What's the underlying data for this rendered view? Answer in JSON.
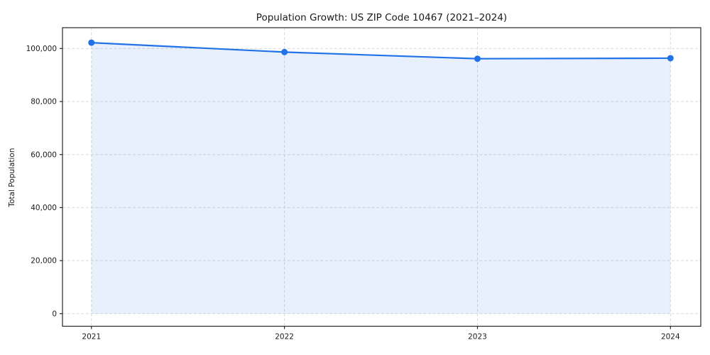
{
  "chart_data": {
    "type": "line",
    "title": "Population Growth: US ZIP Code 10467 (2021–2024)",
    "xlabel": "",
    "ylabel": "Total Population",
    "x": [
      2021,
      2022,
      2023,
      2024
    ],
    "categories": [
      "2021",
      "2022",
      "2023",
      "2024"
    ],
    "series": [
      {
        "name": "Total Population",
        "values": [
          102200,
          98650,
          96150,
          96350
        ]
      }
    ],
    "y_ticks": [
      0,
      20000,
      40000,
      60000,
      80000,
      100000
    ],
    "y_tick_labels": [
      "0",
      "20,000",
      "40,000",
      "60,000",
      "80,000",
      "100,000"
    ],
    "x_tick_labels": [
      "2021",
      "2022",
      "2023",
      "2024"
    ],
    "xlim": [
      2020.85,
      2024.157
    ],
    "ylim": [
      -4750,
      107850
    ],
    "grid": true,
    "grid_style": "dashed",
    "legend": "none",
    "fill_to_zero": true,
    "markers": true,
    "colors": {
      "line": "#2172e6",
      "marker": "#2172e6",
      "fill": "#2172e6",
      "fill_opacity": "0.11",
      "grid": "#d9d9d9",
      "frame": "#262626",
      "text": "#1a1a1a",
      "background": "#ffffff"
    }
  }
}
